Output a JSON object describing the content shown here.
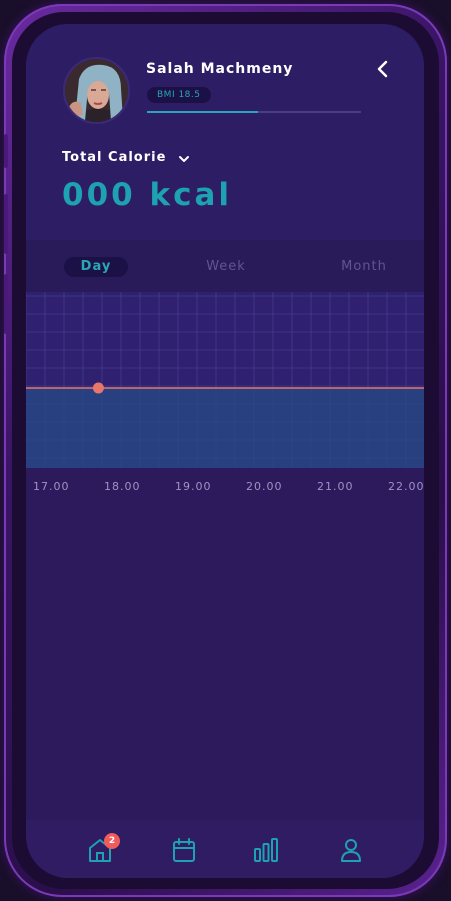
{
  "profile": {
    "name": "Salah Machmeny",
    "bmi_label": "BMI 18.5",
    "progress_fraction": 0.52
  },
  "calorie": {
    "label": "Total Calorie",
    "value": "000 kcal"
  },
  "period_tabs": [
    {
      "label": "Day",
      "active": true
    },
    {
      "label": "Week",
      "active": false
    },
    {
      "label": "Month",
      "active": false
    }
  ],
  "chart_data": {
    "type": "line",
    "categories": [
      "17.00",
      "18.00",
      "19.00",
      "20.00",
      "21.00",
      "22.00"
    ],
    "series": [
      {
        "values": [
          0,
          0,
          0,
          0,
          0,
          0
        ]
      }
    ],
    "highlight_point": {
      "x": "17.40",
      "y": 0
    },
    "line_color": "#e8776a",
    "area_color": "#274a86",
    "grid": true
  },
  "bottom_nav": [
    {
      "icon": "home-icon",
      "badge": "2"
    },
    {
      "icon": "calendar-icon"
    },
    {
      "icon": "bar-chart-icon"
    },
    {
      "icon": "user-icon"
    }
  ],
  "colors": {
    "accent": "#1ea1b1",
    "background": "#2c1a5c",
    "badge": "#ef5b5b"
  }
}
